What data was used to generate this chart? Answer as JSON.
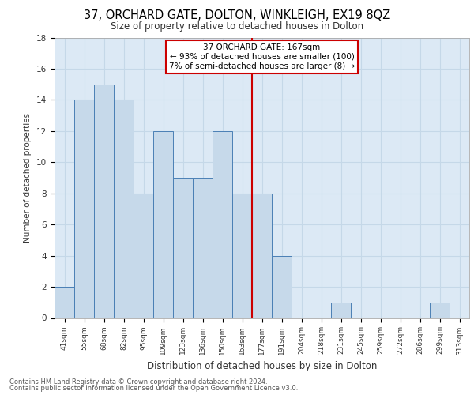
{
  "title_line1": "37, ORCHARD GATE, DOLTON, WINKLEIGH, EX19 8QZ",
  "title_line2": "Size of property relative to detached houses in Dolton",
  "xlabel": "Distribution of detached houses by size in Dolton",
  "ylabel": "Number of detached properties",
  "categories": [
    "41sqm",
    "55sqm",
    "68sqm",
    "82sqm",
    "95sqm",
    "109sqm",
    "123sqm",
    "136sqm",
    "150sqm",
    "163sqm",
    "177sqm",
    "191sqm",
    "204sqm",
    "218sqm",
    "231sqm",
    "245sqm",
    "259sqm",
    "272sqm",
    "286sqm",
    "299sqm",
    "313sqm"
  ],
  "values": [
    2,
    14,
    15,
    14,
    8,
    12,
    9,
    9,
    12,
    8,
    8,
    4,
    0,
    0,
    1,
    0,
    0,
    0,
    0,
    1,
    0
  ],
  "bar_color": "#c6d9ea",
  "bar_edge_color": "#4a7fb5",
  "vline_color": "#cc0000",
  "annotation_text": "37 ORCHARD GATE: 167sqm\n← 93% of detached houses are smaller (100)\n7% of semi-detached houses are larger (8) →",
  "annotation_box_color": "#cc0000",
  "ylim": [
    0,
    18
  ],
  "yticks": [
    0,
    2,
    4,
    6,
    8,
    10,
    12,
    14,
    16,
    18
  ],
  "grid_color": "#c5d8e8",
  "background_color": "#dce9f5",
  "footer_line1": "Contains HM Land Registry data © Crown copyright and database right 2024.",
  "footer_line2": "Contains public sector information licensed under the Open Government Licence v3.0."
}
